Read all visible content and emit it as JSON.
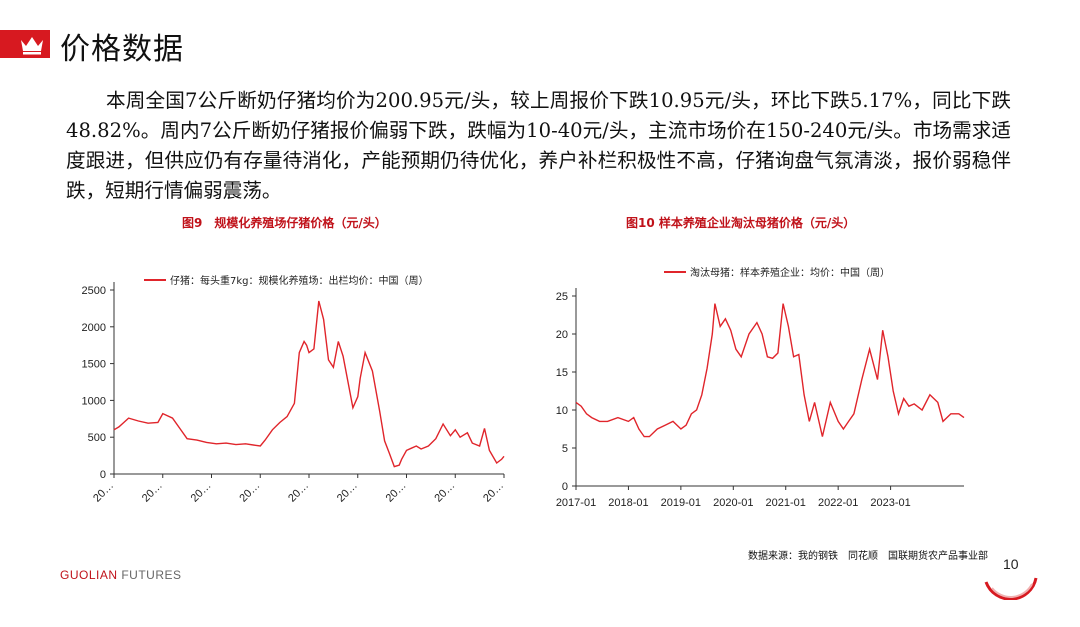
{
  "header": {
    "title": "价格数据"
  },
  "body": {
    "paragraph": "本周全国7公斤断奶仔猪均价为200.95元/头，较上周报价下跌10.95元/头，环比下跌5.17%，同比下跌48.82%。周内7公斤断奶仔猪报价偏弱下跌，跌幅为10-40元/头，主流市场价在150-240元/头。市场需求适度跟进，但供应仍有存量待消化，产能预期仍待优化，养户补栏积极性不高，仔猪询盘气氛清淡，报价弱稳伴跌，短期行情偏弱震荡。"
  },
  "colors": {
    "accent": "#d71920",
    "series": "#e0252b"
  },
  "chart_data": [
    {
      "type": "line",
      "title": "图9　规模化养殖场仔猪价格（元/头）",
      "ylim": [
        0,
        2500
      ],
      "yticks": [
        "2500",
        "2000",
        "1500",
        "1000",
        "500",
        "0"
      ],
      "xticks": [
        "20…",
        "20…",
        "20…",
        "20…",
        "20…",
        "20…",
        "20…",
        "20…",
        "20…"
      ],
      "series": [
        {
          "name": "仔猪：每头重7kg：规模化养殖场：出栏均价：中国（周）",
          "x": [
            0,
            0.1,
            0.2,
            0.3,
            0.5,
            0.7,
            0.9,
            1.0,
            1.2,
            1.35,
            1.5,
            1.7,
            1.9,
            2.1,
            2.3,
            2.5,
            2.7,
            2.9,
            3.0,
            3.1,
            3.25,
            3.4,
            3.55,
            3.7,
            3.8,
            3.9,
            3.95,
            4.0,
            4.1,
            4.2,
            4.3,
            4.4,
            4.5,
            4.6,
            4.7,
            4.8,
            4.9,
            5.0,
            5.05,
            5.15,
            5.3,
            5.45,
            5.55,
            5.65,
            5.75,
            5.85,
            5.9,
            6.0,
            6.1,
            6.2,
            6.3,
            6.45,
            6.6,
            6.75,
            6.9,
            7.0,
            7.1,
            7.25,
            7.35,
            7.5,
            7.6,
            7.7,
            7.85,
            7.95,
            8.0
          ],
          "values": [
            600,
            640,
            700,
            760,
            720,
            690,
            700,
            820,
            760,
            620,
            480,
            460,
            430,
            410,
            420,
            400,
            410,
            390,
            380,
            460,
            600,
            700,
            780,
            960,
            1650,
            1800,
            1750,
            1650,
            1700,
            2350,
            2100,
            1550,
            1450,
            1800,
            1600,
            1250,
            900,
            1050,
            1300,
            1650,
            1400,
            850,
            450,
            280,
            100,
            120,
            200,
            320,
            350,
            380,
            340,
            380,
            480,
            680,
            520,
            600,
            500,
            560,
            420,
            380,
            620,
            320,
            150,
            200,
            240
          ]
        }
      ]
    },
    {
      "type": "line",
      "title": "图10 样本养殖企业淘汰母猪价格（元/头）",
      "ylim": [
        0,
        25
      ],
      "yticks": [
        "25",
        "20",
        "15",
        "10",
        "5",
        "0"
      ],
      "xticks": [
        "2017-01",
        "2018-01",
        "2019-01",
        "2020-01",
        "2021-01",
        "2022-01",
        "2023-01"
      ],
      "series": [
        {
          "name": "淘汰母猪：样本养殖企业：均价：中国（周）",
          "x": [
            0,
            0.1,
            0.2,
            0.3,
            0.45,
            0.6,
            0.8,
            1.0,
            1.1,
            1.2,
            1.3,
            1.4,
            1.55,
            1.7,
            1.85,
            2.0,
            2.1,
            2.2,
            2.3,
            2.4,
            2.5,
            2.6,
            2.65,
            2.75,
            2.85,
            2.95,
            3.05,
            3.15,
            3.3,
            3.45,
            3.55,
            3.65,
            3.75,
            3.85,
            3.95,
            4.05,
            4.15,
            4.25,
            4.35,
            4.45,
            4.55,
            4.7,
            4.85,
            5.0,
            5.1,
            5.2,
            5.3,
            5.45,
            5.6,
            5.75,
            5.85,
            5.95,
            6.05,
            6.15,
            6.25,
            6.35,
            6.45,
            6.6,
            6.75,
            6.9,
            7.0,
            7.15,
            7.3,
            7.4
          ],
          "values": [
            11,
            10.5,
            9.5,
            9,
            8.5,
            8.5,
            9,
            8.5,
            9,
            7.5,
            6.5,
            6.5,
            7.5,
            8,
            8.5,
            7.5,
            8,
            9.5,
            10,
            12,
            15.5,
            20,
            24,
            21,
            22,
            20.5,
            18,
            17,
            20,
            21.5,
            20,
            17,
            16.8,
            17.5,
            24,
            21,
            17,
            17.3,
            12,
            8.5,
            11,
            6.5,
            11,
            8.5,
            7.5,
            8.5,
            9.5,
            14,
            18,
            14,
            20.5,
            17,
            12.5,
            9.5,
            11.5,
            10.5,
            10.8,
            10,
            12,
            11,
            8.5,
            9.5,
            9.5,
            9
          ]
        }
      ]
    }
  ],
  "source": {
    "text": "数据来源：我的钢铁　同花顺　国联期货农产品事业部"
  },
  "footer": {
    "brand_primary": "GUOLIAN",
    "brand_secondary": " FUTURES",
    "page_number": "10"
  }
}
